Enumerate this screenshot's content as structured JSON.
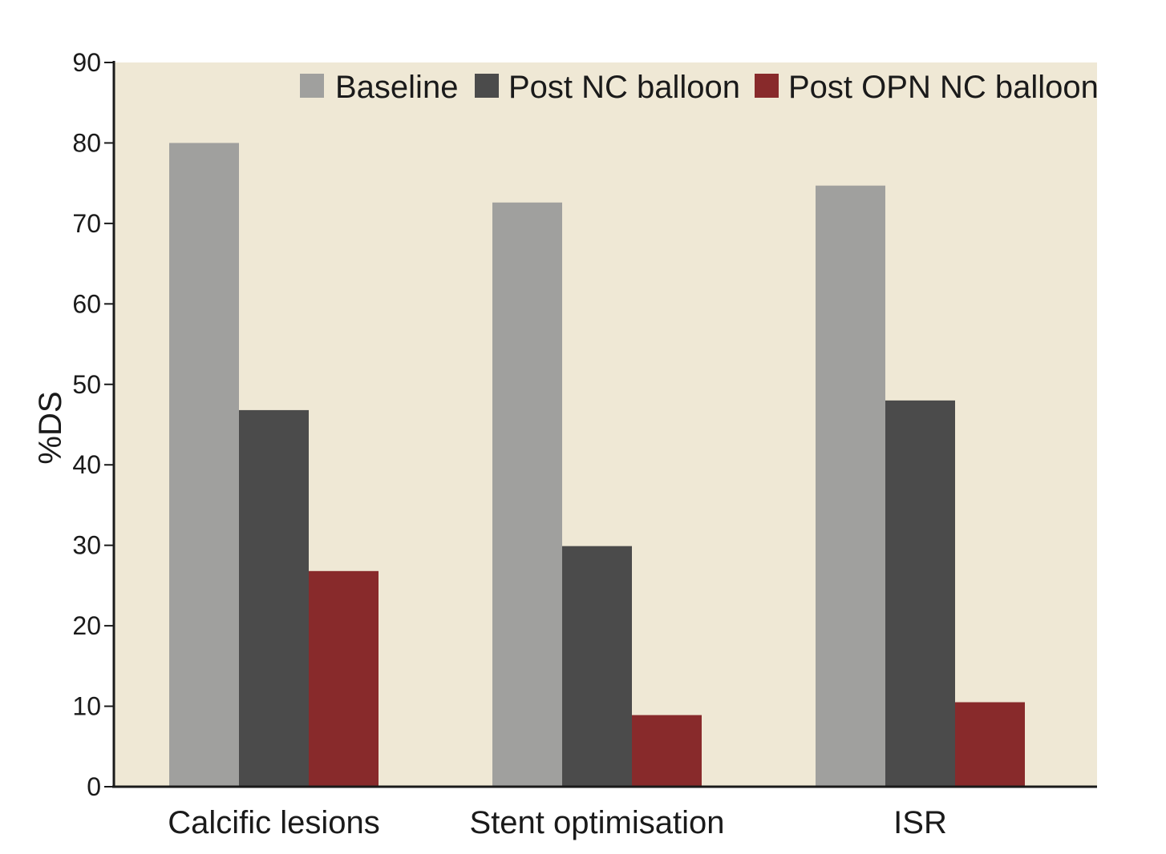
{
  "chart_data": {
    "type": "bar",
    "title": "",
    "xlabel": "",
    "ylabel": "%DS",
    "ylim": [
      0,
      90
    ],
    "yticks": [
      0,
      10,
      20,
      30,
      40,
      50,
      60,
      70,
      80,
      90
    ],
    "categories": [
      "Calcific lesions",
      "Stent optimisation",
      "ISR"
    ],
    "series": [
      {
        "name": "Baseline",
        "color": "#a0a09e",
        "values": [
          80,
          72.6,
          74.7
        ]
      },
      {
        "name": "Post NC balloon",
        "color": "#4b4b4b",
        "values": [
          46.8,
          29.9,
          48.0
        ]
      },
      {
        "name": "Post OPN NC balloon",
        "color": "#882a2b",
        "values": [
          26.8,
          8.9,
          10.5
        ]
      }
    ],
    "legend_position": "top-right",
    "plot_background": "#efe8d5",
    "grid": false
  }
}
